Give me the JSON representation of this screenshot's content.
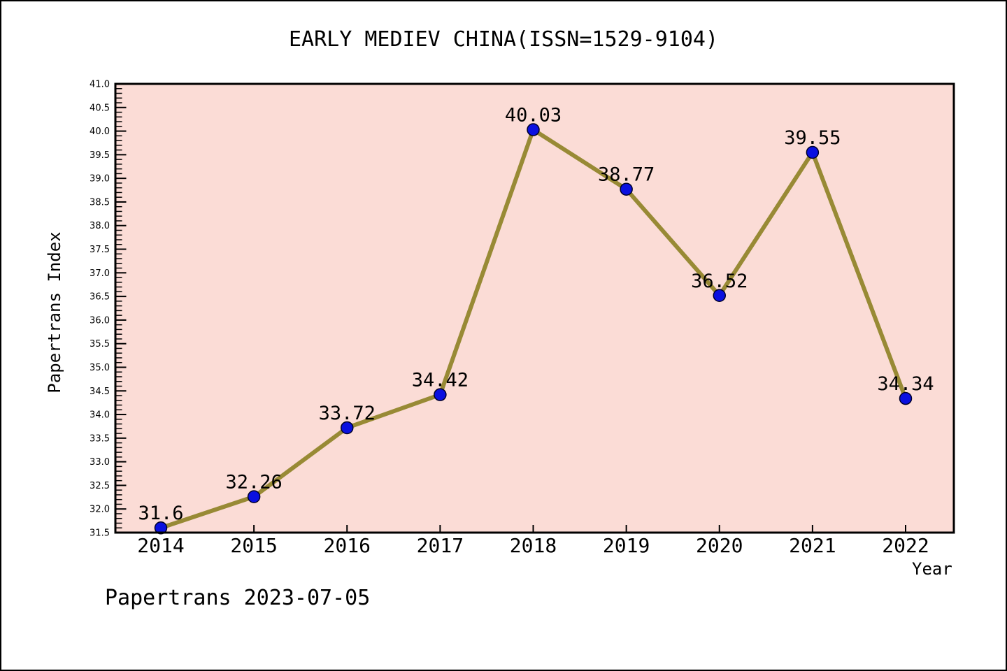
{
  "title": "EARLY MEDIEV CHINA(ISSN=1529-9104)",
  "footer": "Papertrans 2023-07-05",
  "chart_data": {
    "type": "line",
    "title": "EARLY MEDIEV CHINA(ISSN=1529-9104)",
    "xlabel": "Year",
    "ylabel": "Papertrans Index",
    "x": [
      "2014",
      "2015",
      "2016",
      "2017",
      "2018",
      "2019",
      "2020",
      "2021",
      "2022"
    ],
    "series": [
      {
        "name": "Papertrans Index",
        "values": [
          31.6,
          32.26,
          33.72,
          34.42,
          40.03,
          38.77,
          36.52,
          39.55,
          34.34
        ]
      }
    ],
    "point_labels": [
      "31.6",
      "32.26",
      "33.72",
      "34.42",
      "40.03",
      "38.77",
      "36.52",
      "39.55",
      "34.34"
    ],
    "ylim": [
      31.5,
      41.0
    ],
    "ytick_step": 0.5,
    "yminor_step": 0.1,
    "ytick_labels": [
      "31.5",
      "32.0",
      "32.5",
      "33.0",
      "33.5",
      "34.0",
      "34.5",
      "35.0",
      "35.5",
      "36.0",
      "36.5",
      "37.0",
      "37.5",
      "38.0",
      "38.5",
      "39.0",
      "39.5",
      "40.0",
      "40.5",
      "41.0"
    ],
    "grid": false,
    "legend": "none",
    "colors": {
      "plot_bg": "#fbdcd6",
      "line": "#988a35",
      "marker": "#0a10e0",
      "marker_edge": "#00002a",
      "axis": "#000000",
      "text": "#000000"
    }
  }
}
